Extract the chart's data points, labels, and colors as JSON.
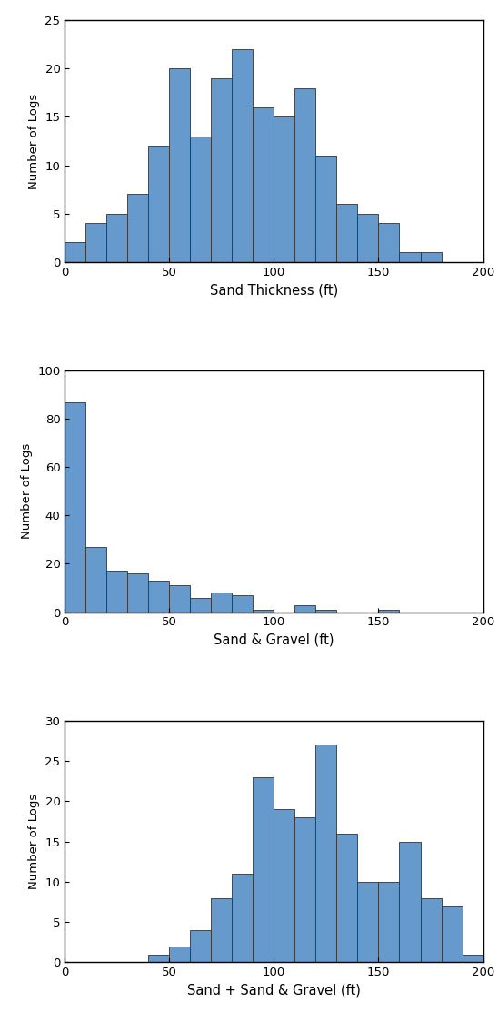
{
  "chart1": {
    "xlabel": "Sand Thickness (ft)",
    "ylabel": "Number of Logs",
    "ylim": [
      0,
      25
    ],
    "yticks": [
      0,
      5,
      10,
      15,
      20,
      25
    ],
    "xlim": [
      0,
      200
    ],
    "xticks": [
      0,
      50,
      100,
      150,
      200
    ],
    "bin_edges": [
      0,
      10,
      20,
      30,
      40,
      50,
      60,
      70,
      80,
      90,
      100,
      110,
      120,
      130,
      140,
      150,
      160,
      170,
      180,
      190,
      200
    ],
    "heights": [
      2,
      4,
      5,
      7,
      12,
      20,
      13,
      19,
      22,
      16,
      15,
      18,
      11,
      6,
      5,
      4,
      1,
      1,
      0,
      0
    ]
  },
  "chart2": {
    "xlabel": "Sand & Gravel (ft)",
    "ylabel": "Number of Logs",
    "ylim": [
      0,
      100
    ],
    "yticks": [
      0,
      20,
      40,
      60,
      80,
      100
    ],
    "xlim": [
      0,
      200
    ],
    "xticks": [
      0,
      50,
      100,
      150,
      200
    ],
    "bin_edges": [
      0,
      10,
      20,
      30,
      40,
      50,
      60,
      70,
      80,
      90,
      100,
      110,
      120,
      130,
      140,
      150,
      160,
      170,
      180,
      190,
      200
    ],
    "heights": [
      87,
      27,
      17,
      16,
      13,
      11,
      6,
      8,
      7,
      1,
      0,
      3,
      1,
      0,
      0,
      1,
      0,
      0,
      0,
      0
    ]
  },
  "chart3": {
    "xlabel": "Sand + Sand & Gravel (ft)",
    "ylabel": "Number of Logs",
    "ylim": [
      0,
      30
    ],
    "yticks": [
      0,
      5,
      10,
      15,
      20,
      25,
      30
    ],
    "xlim": [
      0,
      200
    ],
    "xticks": [
      0,
      50,
      100,
      150,
      200
    ],
    "bin_edges": [
      0,
      10,
      20,
      30,
      40,
      50,
      60,
      70,
      80,
      90,
      100,
      110,
      120,
      130,
      140,
      150,
      160,
      170,
      180,
      190,
      200
    ],
    "heights": [
      0,
      0,
      0,
      0,
      1,
      2,
      4,
      8,
      11,
      23,
      19,
      18,
      27,
      16,
      10,
      10,
      15,
      8,
      7,
      1
    ]
  },
  "bar_color": "#6699CC",
  "bar_edgecolor": "#333333",
  "bar_linewidth": 0.6,
  "figure_bgcolor": "#ffffff",
  "axes_bgcolor": "#ffffff",
  "ylabel_fontsize": 9.5,
  "xlabel_fontsize": 10.5,
  "tick_fontsize": 9.5
}
